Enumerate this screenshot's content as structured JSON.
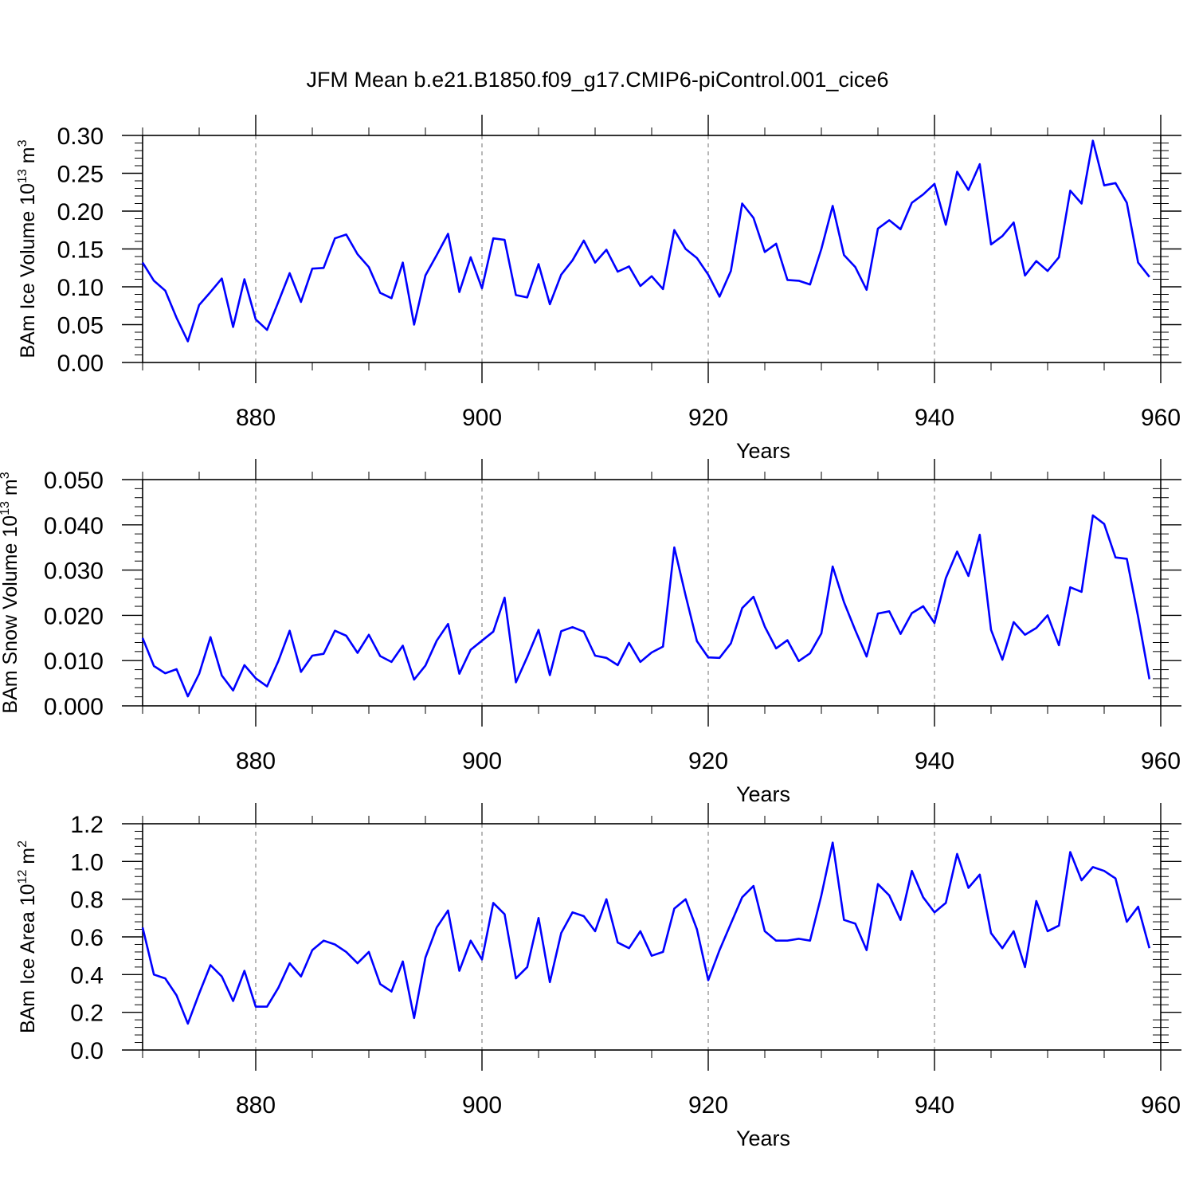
{
  "title": "JFM Mean b.e21.B1850.f09_g17.CMIP6-piControl.001_cice6",
  "colors": {
    "line": "#0000ff",
    "axes": "#000000",
    "background": "#ffffff"
  },
  "chart_data": [
    {
      "type": "line",
      "name": "ice-volume",
      "ylabel_main": "BAm Ice Volume 10",
      "ylabel_exp": "13",
      "ylabel_unit": " m",
      "ylabel_unit_exp": "3",
      "xlabel": "Years",
      "xlim": [
        870,
        960
      ],
      "ylim": [
        0,
        0.3
      ],
      "xticks": [
        880,
        900,
        920,
        940,
        960
      ],
      "yticks": [
        0.0,
        0.05,
        0.1,
        0.15,
        0.2,
        0.25,
        0.3
      ],
      "ytick_labels": [
        "0.00",
        "0.05",
        "0.10",
        "0.15",
        "0.20",
        "0.25",
        "0.30"
      ],
      "x_start": 870,
      "values": [
        0.132,
        0.108,
        0.095,
        0.059,
        0.028,
        0.076,
        0.093,
        0.111,
        0.047,
        0.11,
        0.057,
        0.043,
        0.08,
        0.118,
        0.08,
        0.124,
        0.125,
        0.164,
        0.169,
        0.143,
        0.126,
        0.092,
        0.085,
        0.132,
        0.05,
        0.115,
        0.142,
        0.17,
        0.093,
        0.139,
        0.098,
        0.164,
        0.162,
        0.089,
        0.086,
        0.13,
        0.077,
        0.116,
        0.135,
        0.161,
        0.132,
        0.149,
        0.12,
        0.127,
        0.101,
        0.114,
        0.097,
        0.175,
        0.15,
        0.138,
        0.116,
        0.087,
        0.121,
        0.21,
        0.191,
        0.146,
        0.157,
        0.109,
        0.108,
        0.103,
        0.15,
        0.207,
        0.142,
        0.126,
        0.096,
        0.177,
        0.188,
        0.176,
        0.211,
        0.222,
        0.236,
        0.182,
        0.252,
        0.228,
        0.262,
        0.156,
        0.167,
        0.185,
        0.115,
        0.134,
        0.121,
        0.139,
        0.227,
        0.21,
        0.293,
        0.234,
        0.237,
        0.211,
        0.132,
        0.113
      ]
    },
    {
      "type": "line",
      "name": "snow-volume",
      "ylabel_main": "BAm Snow Volume 10",
      "ylabel_exp": "13",
      "ylabel_unit": " m",
      "ylabel_unit_exp": "3",
      "xlabel": "Years",
      "xlim": [
        870,
        960
      ],
      "ylim": [
        0,
        0.05
      ],
      "xticks": [
        880,
        900,
        920,
        940,
        960
      ],
      "yticks": [
        0.0,
        0.01,
        0.02,
        0.03,
        0.04,
        0.05
      ],
      "ytick_labels": [
        "0.000",
        "0.010",
        "0.020",
        "0.030",
        "0.040",
        "0.050"
      ],
      "x_start": 870,
      "values": [
        0.015,
        0.0088,
        0.0072,
        0.0081,
        0.0021,
        0.0071,
        0.0152,
        0.0067,
        0.0034,
        0.009,
        0.0061,
        0.0043,
        0.0099,
        0.0166,
        0.0075,
        0.0111,
        0.0115,
        0.0166,
        0.0155,
        0.0117,
        0.0157,
        0.011,
        0.0097,
        0.0133,
        0.0058,
        0.0089,
        0.0144,
        0.0181,
        0.0071,
        0.0124,
        0.0144,
        0.0164,
        0.0239,
        0.0052,
        0.0108,
        0.0168,
        0.0068,
        0.0165,
        0.0174,
        0.0164,
        0.0111,
        0.0106,
        0.009,
        0.0139,
        0.0097,
        0.0118,
        0.0131,
        0.035,
        0.0244,
        0.0143,
        0.0107,
        0.0106,
        0.0138,
        0.0216,
        0.0241,
        0.0175,
        0.0127,
        0.0145,
        0.0099,
        0.0116,
        0.016,
        0.0308,
        0.0229,
        0.0167,
        0.0109,
        0.0204,
        0.0209,
        0.0159,
        0.0205,
        0.022,
        0.0183,
        0.0282,
        0.0341,
        0.0287,
        0.0378,
        0.0168,
        0.0102,
        0.0185,
        0.0157,
        0.0172,
        0.02,
        0.0134,
        0.0262,
        0.0252,
        0.0421,
        0.0402,
        0.0328,
        0.0325,
        0.0197,
        0.0059
      ]
    },
    {
      "type": "line",
      "name": "ice-area",
      "ylabel_main": "BAm Ice Area 10",
      "ylabel_exp": "12",
      "ylabel_unit": " m",
      "ylabel_unit_exp": "2",
      "xlabel": "Years",
      "xlim": [
        870,
        960
      ],
      "ylim": [
        0,
        1.2
      ],
      "xticks": [
        880,
        900,
        920,
        940,
        960
      ],
      "yticks": [
        0.0,
        0.2,
        0.4,
        0.6,
        0.8,
        1.0,
        1.2
      ],
      "ytick_labels": [
        "0.0",
        "0.2",
        "0.4",
        "0.6",
        "0.8",
        "1.0",
        "1.2"
      ],
      "x_start": 870,
      "values": [
        0.65,
        0.4,
        0.38,
        0.29,
        0.14,
        0.3,
        0.45,
        0.39,
        0.26,
        0.42,
        0.23,
        0.23,
        0.33,
        0.46,
        0.39,
        0.53,
        0.58,
        0.56,
        0.52,
        0.46,
        0.52,
        0.35,
        0.31,
        0.47,
        0.17,
        0.49,
        0.65,
        0.74,
        0.42,
        0.58,
        0.48,
        0.78,
        0.72,
        0.38,
        0.44,
        0.7,
        0.36,
        0.62,
        0.73,
        0.71,
        0.63,
        0.8,
        0.57,
        0.54,
        0.63,
        0.5,
        0.52,
        0.75,
        0.8,
        0.64,
        0.37,
        0.53,
        0.67,
        0.81,
        0.87,
        0.63,
        0.58,
        0.58,
        0.59,
        0.58,
        0.82,
        1.1,
        0.69,
        0.67,
        0.53,
        0.88,
        0.82,
        0.69,
        0.95,
        0.81,
        0.73,
        0.78,
        1.04,
        0.86,
        0.93,
        0.62,
        0.54,
        0.63,
        0.44,
        0.79,
        0.63,
        0.66,
        1.05,
        0.9,
        0.97,
        0.95,
        0.91,
        0.68,
        0.76,
        0.54
      ]
    }
  ]
}
